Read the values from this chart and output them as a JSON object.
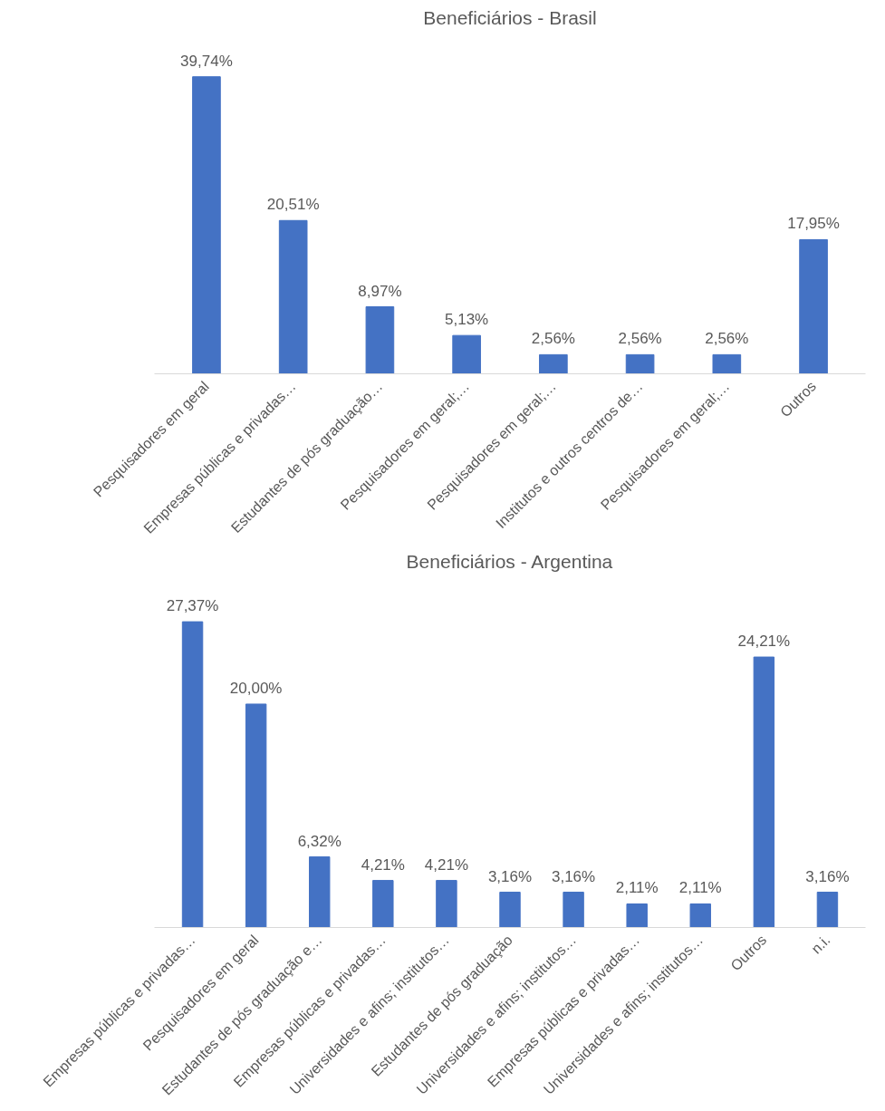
{
  "chart_data": [
    {
      "type": "bar",
      "title": "Beneficiários - Brasil",
      "color": "#4472c4",
      "categories": [
        "Pesquisadores em geral",
        "Empresas públicas e privadas…",
        "Estudantes de pós graduação…",
        "Pesquisadores em geral;…",
        "Pesquisadores em geral;…",
        "Institutos e outros centros de…",
        "Pesquisadores em geral;…",
        "Outros"
      ],
      "values": [
        39.74,
        20.51,
        8.97,
        5.13,
        2.56,
        2.56,
        2.56,
        17.95
      ],
      "value_labels": [
        "39,74%",
        "20,51%",
        "8,97%",
        "5,13%",
        "2,56%",
        "2,56%",
        "2,56%",
        "17,95%"
      ]
    },
    {
      "type": "bar",
      "title": "Beneficiários - Argentina",
      "color": "#4472c4",
      "categories": [
        "Empresas públicas e privadas…",
        "Pesquisadores em geral",
        "Estudantes de pós graduação e…",
        "Empresas públicas e privadas…",
        "Universidades e afins; institutos…",
        "Estudantes de pós graduação",
        "Universidades e afins; institutos…",
        "Empresas públicas e privadas…",
        "Universidades e afins; institutos…",
        "Outros",
        "n.i."
      ],
      "values": [
        27.37,
        20.0,
        6.32,
        4.21,
        4.21,
        3.16,
        3.16,
        2.11,
        2.11,
        24.21,
        3.16
      ],
      "value_labels": [
        "27,37%",
        "20,00%",
        "6,32%",
        "4,21%",
        "4,21%",
        "3,16%",
        "3,16%",
        "2,11%",
        "2,11%",
        "24,21%",
        "3,16%"
      ]
    }
  ]
}
